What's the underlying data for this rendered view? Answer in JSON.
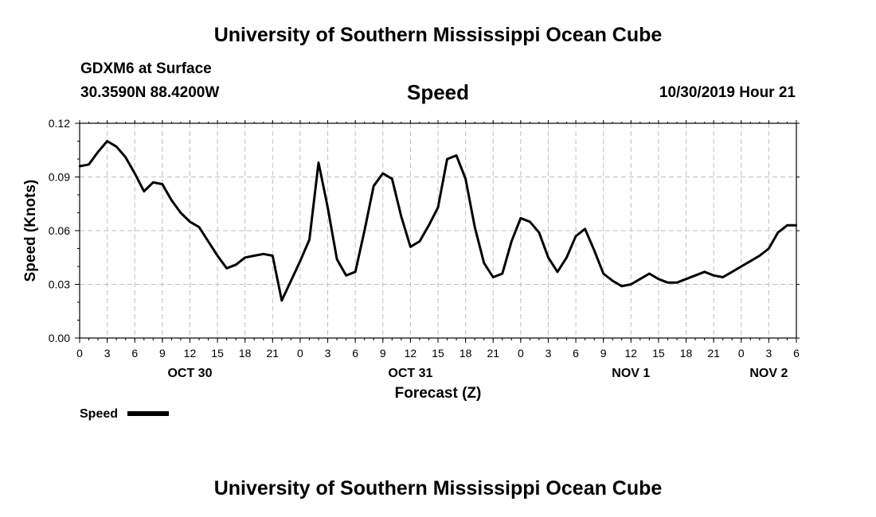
{
  "header": {
    "title": "University of Southern Mississippi Ocean Cube",
    "station": "GDXM6 at Surface",
    "location": "30.3590N 88.4200W",
    "variable": "Speed",
    "run_time": "10/30/2019 Hour 21"
  },
  "footer": {
    "title": "University of Southern Mississippi Ocean Cube"
  },
  "colors": {
    "line": "#000000",
    "grid": "#bfbfbf",
    "axis": "#000000"
  },
  "chart_data": {
    "type": "line",
    "title": "Speed",
    "xlabel": "Forecast (Z)",
    "ylabel": "Speed (Knots)",
    "x_unit": "forecast hours from 2019-10-30 00Z",
    "xlim": [
      0,
      78
    ],
    "ylim": [
      0.0,
      0.12
    ],
    "grid": true,
    "y_ticks": [
      "0.00",
      "0.03",
      "0.06",
      "0.09",
      "0.12"
    ],
    "y_tick_values": [
      0.0,
      0.03,
      0.06,
      0.09,
      0.12
    ],
    "x_ticks": [
      {
        "hour": 0,
        "label": "0"
      },
      {
        "hour": 3,
        "label": "3"
      },
      {
        "hour": 6,
        "label": "6"
      },
      {
        "hour": 9,
        "label": "9"
      },
      {
        "hour": 12,
        "label": "12"
      },
      {
        "hour": 15,
        "label": "15"
      },
      {
        "hour": 18,
        "label": "18"
      },
      {
        "hour": 21,
        "label": "21"
      },
      {
        "hour": 24,
        "label": "0"
      },
      {
        "hour": 27,
        "label": "3"
      },
      {
        "hour": 30,
        "label": "6"
      },
      {
        "hour": 33,
        "label": "9"
      },
      {
        "hour": 36,
        "label": "12"
      },
      {
        "hour": 39,
        "label": "15"
      },
      {
        "hour": 42,
        "label": "18"
      },
      {
        "hour": 45,
        "label": "21"
      },
      {
        "hour": 48,
        "label": "0"
      },
      {
        "hour": 51,
        "label": "3"
      },
      {
        "hour": 54,
        "label": "6"
      },
      {
        "hour": 57,
        "label": "9"
      },
      {
        "hour": 60,
        "label": "12"
      },
      {
        "hour": 63,
        "label": "15"
      },
      {
        "hour": 66,
        "label": "18"
      },
      {
        "hour": 69,
        "label": "21"
      },
      {
        "hour": 72,
        "label": "0"
      },
      {
        "hour": 75,
        "label": "3"
      },
      {
        "hour": 78,
        "label": "6"
      }
    ],
    "day_labels": [
      {
        "hour": 12,
        "label": "OCT 30"
      },
      {
        "hour": 36,
        "label": "OCT 31"
      },
      {
        "hour": 60,
        "label": "NOV 1"
      },
      {
        "hour": 75,
        "label": "NOV 2"
      }
    ],
    "legend": {
      "label": "Speed",
      "position": "bottom-left"
    },
    "series": [
      {
        "name": "Speed",
        "x": [
          0,
          1,
          2,
          3,
          4,
          5,
          6,
          7,
          8,
          9,
          10,
          11,
          12,
          13,
          14,
          15,
          16,
          17,
          18,
          19,
          20,
          21,
          22,
          23,
          24,
          25,
          26,
          27,
          28,
          29,
          30,
          31,
          32,
          33,
          34,
          35,
          36,
          37,
          38,
          39,
          40,
          41,
          42,
          43,
          44,
          45,
          46,
          47,
          48,
          49,
          50,
          51,
          52,
          53,
          54,
          55,
          56,
          57,
          58,
          59,
          60,
          61,
          62,
          63,
          64,
          65,
          66,
          67,
          68,
          69,
          70,
          71,
          72,
          73,
          74,
          75,
          76,
          77,
          78
        ],
        "values": [
          0.096,
          0.097,
          0.104,
          0.11,
          0.107,
          0.101,
          0.092,
          0.082,
          0.087,
          0.086,
          0.077,
          0.07,
          0.065,
          0.062,
          0.054,
          0.046,
          0.039,
          0.041,
          0.045,
          0.046,
          0.047,
          0.046,
          0.021,
          0.032,
          0.043,
          0.055,
          0.098,
          0.073,
          0.044,
          0.035,
          0.037,
          0.06,
          0.085,
          0.092,
          0.089,
          0.068,
          0.051,
          0.054,
          0.063,
          0.073,
          0.1,
          0.102,
          0.089,
          0.062,
          0.042,
          0.034,
          0.036,
          0.054,
          0.067,
          0.065,
          0.059,
          0.045,
          0.037,
          0.045,
          0.057,
          0.061,
          0.049,
          0.036,
          0.032,
          0.029,
          0.03,
          0.033,
          0.036,
          0.033,
          0.031,
          0.031,
          0.033,
          0.035,
          0.037,
          0.035,
          0.034,
          0.037,
          0.04,
          0.043,
          0.046,
          0.05,
          0.059,
          0.063,
          0.063
        ]
      }
    ]
  }
}
